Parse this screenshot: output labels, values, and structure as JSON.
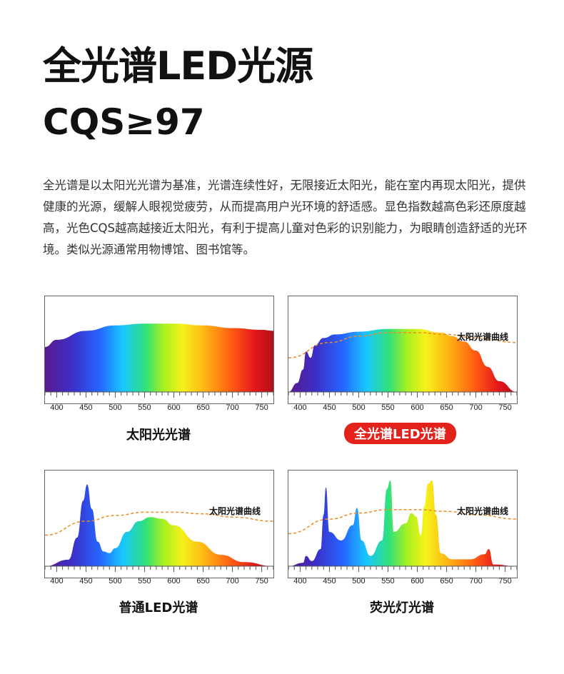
{
  "header": {
    "title_line1": "全光谱LED光源",
    "title_line2": "CQS≥97"
  },
  "description": "全光谱是以太阳光光谱为基准，光谱连续性好，无限接近太阳光，能在室内再现太阳光，提供健康的光源，缓解人眼视觉疲劳，从而提高用户光环境的舒适感。显色指数越高色彩还原度越高，光色CQS越高越接近太阳光，有利于提高儿童对色彩的识别能力，为眼睛创造舒适的光环境。类似光源通常用物博馆、图书馆等。",
  "curve_label": "太阳光谱曲线",
  "ticks": [
    "400",
    "450",
    "500",
    "550",
    "600",
    "650",
    "700",
    "750"
  ],
  "panels": [
    {
      "caption": "太阳光光谱",
      "highlight": false
    },
    {
      "caption": "全光谱LED光谱",
      "highlight": true
    },
    {
      "caption": "普通LED光谱",
      "highlight": false
    },
    {
      "caption": "荧光灯光谱",
      "highlight": false
    }
  ],
  "colors": {
    "highlight": "#e3221b",
    "reference_curve": "#f08a24"
  },
  "chart_data": [
    {
      "type": "area",
      "x": [
        380,
        400,
        450,
        500,
        550,
        600,
        650,
        700,
        750,
        770
      ],
      "values": [
        0.5,
        0.58,
        0.68,
        0.74,
        0.76,
        0.76,
        0.74,
        0.71,
        0.69,
        0.68
      ],
      "xlim": [
        380,
        770
      ],
      "ylim": [
        0,
        1
      ]
    },
    {
      "type": "area",
      "x": [
        380,
        395,
        405,
        410,
        418,
        425,
        440,
        460,
        500,
        550,
        600,
        640,
        660,
        680,
        700,
        720,
        740,
        770
      ],
      "values": [
        0.0,
        0.1,
        0.25,
        0.45,
        0.38,
        0.52,
        0.6,
        0.64,
        0.67,
        0.7,
        0.7,
        0.66,
        0.62,
        0.56,
        0.46,
        0.28,
        0.12,
        0.0
      ],
      "reference_curve": {
        "name": "太阳光谱曲线",
        "x": [
          380,
          450,
          500,
          550,
          600,
          650,
          700,
          770
        ],
        "values": [
          0.38,
          0.55,
          0.62,
          0.66,
          0.66,
          0.64,
          0.6,
          0.55
        ]
      },
      "xlim": [
        380,
        770
      ],
      "ylim": [
        0,
        1
      ]
    },
    {
      "type": "area",
      "x": [
        380,
        420,
        435,
        445,
        452,
        460,
        470,
        480,
        490,
        500,
        520,
        540,
        560,
        580,
        600,
        640,
        680,
        720,
        770
      ],
      "values": [
        0.0,
        0.08,
        0.35,
        0.8,
        1.0,
        0.7,
        0.3,
        0.18,
        0.16,
        0.22,
        0.42,
        0.55,
        0.6,
        0.58,
        0.5,
        0.3,
        0.14,
        0.05,
        0.0
      ],
      "reference_curve": {
        "name": "太阳光谱曲线",
        "x": [
          380,
          450,
          500,
          550,
          600,
          650,
          700,
          770
        ],
        "values": [
          0.38,
          0.55,
          0.62,
          0.66,
          0.66,
          0.64,
          0.6,
          0.55
        ]
      },
      "xlim": [
        380,
        770
      ],
      "ylim": [
        0,
        1.1
      ]
    },
    {
      "type": "area",
      "x": [
        380,
        405,
        410,
        420,
        435,
        440,
        444,
        450,
        470,
        490,
        497,
        505,
        520,
        540,
        548,
        554,
        560,
        580,
        590,
        598,
        606,
        612,
        618,
        625,
        632,
        640,
        660,
        690,
        715,
        722,
        730,
        770
      ],
      "values": [
        0.0,
        0.04,
        0.12,
        0.06,
        0.2,
        0.6,
        0.92,
        0.4,
        0.3,
        0.48,
        0.68,
        0.3,
        0.12,
        0.3,
        0.9,
        1.0,
        0.4,
        0.5,
        0.62,
        0.58,
        0.36,
        0.7,
        0.96,
        1.0,
        0.6,
        0.15,
        0.08,
        0.08,
        0.14,
        0.2,
        0.02,
        0.0
      ],
      "reference_curve": {
        "name": "太阳光谱曲线",
        "x": [
          380,
          450,
          500,
          550,
          600,
          650,
          700,
          770
        ],
        "values": [
          0.38,
          0.55,
          0.62,
          0.66,
          0.66,
          0.64,
          0.6,
          0.55
        ]
      },
      "xlim": [
        380,
        770
      ],
      "ylim": [
        0,
        1.05
      ]
    }
  ]
}
